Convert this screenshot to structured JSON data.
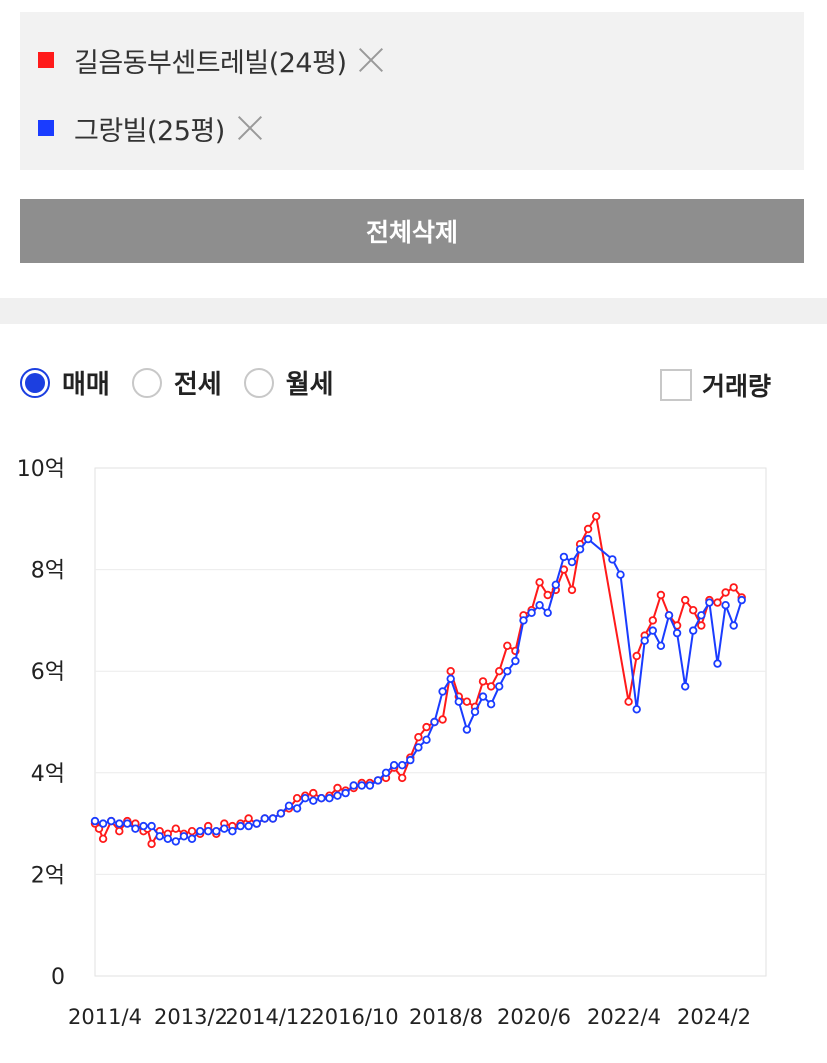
{
  "compare": {
    "items": [
      {
        "name": "길음동부센트레빌(24평)",
        "color": "#ff1a1a"
      },
      {
        "name": "그랑빌(25평)",
        "color": "#1a3cff"
      }
    ],
    "delete_all_label": "전체삭제"
  },
  "tabs": {
    "options": [
      "매매",
      "전세",
      "월세"
    ],
    "selected": "매매",
    "volume_label": "거래량",
    "volume_checked": false
  },
  "chart_data": {
    "type": "line",
    "title": "",
    "xlabel": "",
    "ylabel": "",
    "x_ticks": [
      "2011/4",
      "2013/2",
      "2014/12",
      "2016/10",
      "2018/8",
      "2020/6",
      "2022/4",
      "2024/2"
    ],
    "y_ticks": [
      "0",
      "2억",
      "4억",
      "6억",
      "8억",
      "10억"
    ],
    "y_unit": "억",
    "ylim": [
      0,
      10
    ],
    "xlim": [
      "2011-04",
      "2025-02"
    ],
    "grid": true,
    "series": [
      {
        "name": "길음동부센트레빌(24평)",
        "color": "#ff1a1a",
        "points": [
          [
            "2011-04",
            3.0
          ],
          [
            "2011-05",
            2.9
          ],
          [
            "2011-06",
            2.7
          ],
          [
            "2011-08",
            3.05
          ],
          [
            "2011-10",
            2.85
          ],
          [
            "2011-12",
            3.05
          ],
          [
            "2012-02",
            3.0
          ],
          [
            "2012-04",
            2.85
          ],
          [
            "2012-05",
            2.9
          ],
          [
            "2012-06",
            2.6
          ],
          [
            "2012-08",
            2.85
          ],
          [
            "2012-10",
            2.8
          ],
          [
            "2012-12",
            2.9
          ],
          [
            "2013-02",
            2.8
          ],
          [
            "2013-04",
            2.85
          ],
          [
            "2013-06",
            2.8
          ],
          [
            "2013-08",
            2.95
          ],
          [
            "2013-10",
            2.8
          ],
          [
            "2013-12",
            3.0
          ],
          [
            "2014-02",
            2.95
          ],
          [
            "2014-04",
            3.0
          ],
          [
            "2014-06",
            3.1
          ],
          [
            "2014-08",
            3.0
          ],
          [
            "2014-10",
            3.1
          ],
          [
            "2014-12",
            3.1
          ],
          [
            "2015-02",
            3.2
          ],
          [
            "2015-04",
            3.3
          ],
          [
            "2015-06",
            3.5
          ],
          [
            "2015-08",
            3.55
          ],
          [
            "2015-10",
            3.6
          ],
          [
            "2015-12",
            3.5
          ],
          [
            "2016-02",
            3.55
          ],
          [
            "2016-04",
            3.7
          ],
          [
            "2016-06",
            3.65
          ],
          [
            "2016-08",
            3.7
          ],
          [
            "2016-10",
            3.8
          ],
          [
            "2016-12",
            3.8
          ],
          [
            "2017-02",
            3.85
          ],
          [
            "2017-04",
            3.9
          ],
          [
            "2017-06",
            4.1
          ],
          [
            "2017-08",
            3.9
          ],
          [
            "2017-10",
            4.3
          ],
          [
            "2017-12",
            4.7
          ],
          [
            "2018-02",
            4.9
          ],
          [
            "2018-04",
            5.0
          ],
          [
            "2018-06",
            5.05
          ],
          [
            "2018-08",
            6.0
          ],
          [
            "2018-10",
            5.5
          ],
          [
            "2018-12",
            5.4
          ],
          [
            "2019-02",
            5.3
          ],
          [
            "2019-04",
            5.8
          ],
          [
            "2019-06",
            5.7
          ],
          [
            "2019-08",
            6.0
          ],
          [
            "2019-10",
            6.5
          ],
          [
            "2019-12",
            6.4
          ],
          [
            "2020-02",
            7.1
          ],
          [
            "2020-04",
            7.2
          ],
          [
            "2020-06",
            7.75
          ],
          [
            "2020-08",
            7.5
          ],
          [
            "2020-10",
            7.6
          ],
          [
            "2020-12",
            8.0
          ],
          [
            "2021-02",
            7.6
          ],
          [
            "2021-04",
            8.5
          ],
          [
            "2021-06",
            8.8
          ],
          [
            "2021-08",
            9.05
          ],
          [
            "2022-04",
            5.4
          ],
          [
            "2022-06",
            6.3
          ],
          [
            "2022-08",
            6.7
          ],
          [
            "2022-10",
            7.0
          ],
          [
            "2022-12",
            7.5
          ],
          [
            "2023-02",
            7.1
          ],
          [
            "2023-04",
            6.9
          ],
          [
            "2023-06",
            7.4
          ],
          [
            "2023-08",
            7.2
          ],
          [
            "2023-10",
            6.9
          ],
          [
            "2023-12",
            7.4
          ],
          [
            "2024-02",
            7.35
          ],
          [
            "2024-04",
            7.55
          ],
          [
            "2024-06",
            7.65
          ],
          [
            "2024-08",
            7.45
          ]
        ]
      },
      {
        "name": "그랑빌(25평)",
        "color": "#1a3cff",
        "points": [
          [
            "2011-04",
            3.05
          ],
          [
            "2011-06",
            3.0
          ],
          [
            "2011-08",
            3.05
          ],
          [
            "2011-10",
            3.0
          ],
          [
            "2011-12",
            3.0
          ],
          [
            "2012-02",
            2.9
          ],
          [
            "2012-04",
            2.95
          ],
          [
            "2012-06",
            2.95
          ],
          [
            "2012-08",
            2.75
          ],
          [
            "2012-10",
            2.7
          ],
          [
            "2012-12",
            2.65
          ],
          [
            "2013-02",
            2.75
          ],
          [
            "2013-04",
            2.7
          ],
          [
            "2013-06",
            2.85
          ],
          [
            "2013-08",
            2.85
          ],
          [
            "2013-10",
            2.85
          ],
          [
            "2013-12",
            2.9
          ],
          [
            "2014-02",
            2.85
          ],
          [
            "2014-04",
            2.95
          ],
          [
            "2014-06",
            2.95
          ],
          [
            "2014-08",
            3.0
          ],
          [
            "2014-10",
            3.1
          ],
          [
            "2014-12",
            3.1
          ],
          [
            "2015-02",
            3.2
          ],
          [
            "2015-04",
            3.35
          ],
          [
            "2015-06",
            3.3
          ],
          [
            "2015-08",
            3.5
          ],
          [
            "2015-10",
            3.45
          ],
          [
            "2015-12",
            3.5
          ],
          [
            "2016-02",
            3.5
          ],
          [
            "2016-04",
            3.55
          ],
          [
            "2016-06",
            3.6
          ],
          [
            "2016-08",
            3.75
          ],
          [
            "2016-10",
            3.75
          ],
          [
            "2016-12",
            3.75
          ],
          [
            "2017-02",
            3.85
          ],
          [
            "2017-04",
            4.0
          ],
          [
            "2017-06",
            4.15
          ],
          [
            "2017-08",
            4.15
          ],
          [
            "2017-10",
            4.25
          ],
          [
            "2017-12",
            4.5
          ],
          [
            "2018-02",
            4.65
          ],
          [
            "2018-04",
            5.0
          ],
          [
            "2018-06",
            5.6
          ],
          [
            "2018-08",
            5.85
          ],
          [
            "2018-10",
            5.4
          ],
          [
            "2018-12",
            4.85
          ],
          [
            "2019-02",
            5.2
          ],
          [
            "2019-04",
            5.5
          ],
          [
            "2019-06",
            5.35
          ],
          [
            "2019-08",
            5.7
          ],
          [
            "2019-10",
            6.0
          ],
          [
            "2019-12",
            6.2
          ],
          [
            "2020-02",
            7.0
          ],
          [
            "2020-04",
            7.15
          ],
          [
            "2020-06",
            7.3
          ],
          [
            "2020-08",
            7.15
          ],
          [
            "2020-10",
            7.7
          ],
          [
            "2020-12",
            8.25
          ],
          [
            "2021-02",
            8.15
          ],
          [
            "2021-04",
            8.4
          ],
          [
            "2021-06",
            8.6
          ],
          [
            "2021-12",
            8.2
          ],
          [
            "2022-02",
            7.9
          ],
          [
            "2022-06",
            5.25
          ],
          [
            "2022-08",
            6.6
          ],
          [
            "2022-10",
            6.8
          ],
          [
            "2022-12",
            6.5
          ],
          [
            "2023-02",
            7.1
          ],
          [
            "2023-04",
            6.75
          ],
          [
            "2023-06",
            5.7
          ],
          [
            "2023-08",
            6.8
          ],
          [
            "2023-10",
            7.1
          ],
          [
            "2023-12",
            7.35
          ],
          [
            "2024-02",
            6.15
          ],
          [
            "2024-04",
            7.3
          ],
          [
            "2024-06",
            6.9
          ],
          [
            "2024-08",
            7.4
          ]
        ]
      }
    ]
  }
}
